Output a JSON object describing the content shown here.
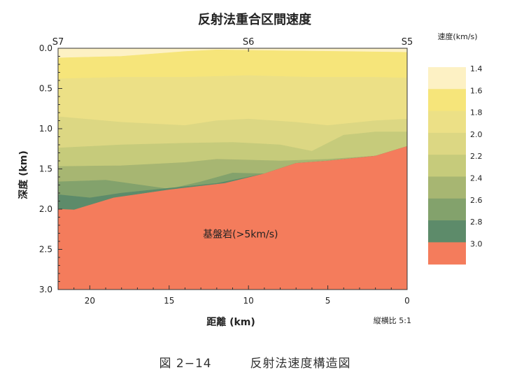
{
  "chart_data": {
    "type": "area",
    "title": "反射法重合区間速度",
    "xlabel": "距離 (km)",
    "ylabel": "深度 (km)",
    "xlim": [
      22,
      0
    ],
    "ylim": [
      0,
      3.0
    ],
    "x_ticks": [
      "20",
      "15",
      "10",
      "5",
      "0"
    ],
    "y_ticks": [
      "0.0",
      "0.5",
      "1.0",
      "1.5",
      "2.0",
      "2.5",
      "3.0"
    ],
    "stations": [
      {
        "name": "S7",
        "x": 22
      },
      {
        "name": "S6",
        "x": 10
      },
      {
        "name": "S5",
        "x": 0
      }
    ],
    "aspect_note": "縦横比 5:1",
    "colorbar": {
      "title": "速度(km/s)",
      "levels": [
        "1.4",
        "1.6",
        "1.8",
        "2.0",
        "2.2",
        "2.4",
        "2.6",
        "2.8",
        "3.0"
      ],
      "colors": [
        "#fdf1c4",
        "#f6e57a",
        "#ece086",
        "#dcd783",
        "#c6cb7b",
        "#a7b672",
        "#83a26c",
        "#5d8b6a",
        "#f47c5c"
      ]
    },
    "layers": [
      {
        "velocity": "1.4",
        "color": "#fdf1c4",
        "top": [
          [
            22,
            0
          ],
          [
            0,
            0
          ]
        ],
        "bottom": [
          [
            22,
            0.12
          ],
          [
            18,
            0.1
          ],
          [
            14,
            0.04
          ],
          [
            12,
            0.02
          ],
          [
            8,
            0.03
          ],
          [
            4,
            0.04
          ],
          [
            0,
            0.05
          ]
        ]
      },
      {
        "velocity": "1.6",
        "color": "#f6e57a",
        "top": [
          [
            22,
            0.12
          ],
          [
            18,
            0.1
          ],
          [
            14,
            0.04
          ],
          [
            12,
            0.02
          ],
          [
            8,
            0.03
          ],
          [
            4,
            0.04
          ],
          [
            0,
            0.05
          ]
        ],
        "bottom": [
          [
            22,
            0.38
          ],
          [
            18,
            0.36
          ],
          [
            14,
            0.36
          ],
          [
            10,
            0.34
          ],
          [
            6,
            0.36
          ],
          [
            2,
            0.36
          ],
          [
            0,
            0.37
          ]
        ]
      },
      {
        "velocity": "1.8",
        "color": "#ece086",
        "top": [
          [
            22,
            0.38
          ],
          [
            18,
            0.36
          ],
          [
            14,
            0.36
          ],
          [
            10,
            0.34
          ],
          [
            6,
            0.36
          ],
          [
            2,
            0.36
          ],
          [
            0,
            0.37
          ]
        ],
        "bottom": [
          [
            22,
            0.85
          ],
          [
            18,
            0.92
          ],
          [
            14,
            0.96
          ],
          [
            12,
            0.9
          ],
          [
            10,
            0.88
          ],
          [
            7,
            0.92
          ],
          [
            5,
            0.96
          ],
          [
            2,
            0.9
          ],
          [
            0,
            0.88
          ]
        ]
      },
      {
        "velocity": "2.0",
        "color": "#dcd783",
        "top": [
          [
            22,
            0.85
          ],
          [
            18,
            0.92
          ],
          [
            14,
            0.96
          ],
          [
            12,
            0.9
          ],
          [
            10,
            0.88
          ],
          [
            7,
            0.92
          ],
          [
            5,
            0.96
          ],
          [
            2,
            0.9
          ],
          [
            0,
            0.88
          ]
        ],
        "bottom": [
          [
            22,
            1.24
          ],
          [
            18,
            1.2
          ],
          [
            14,
            1.18
          ],
          [
            11,
            1.17
          ],
          [
            8,
            1.2
          ],
          [
            6,
            1.28
          ],
          [
            4,
            1.08
          ],
          [
            2,
            1.04
          ],
          [
            0,
            1.04
          ]
        ]
      },
      {
        "velocity": "2.2",
        "color": "#c6cb7b",
        "top": [
          [
            22,
            1.24
          ],
          [
            18,
            1.2
          ],
          [
            14,
            1.18
          ],
          [
            11,
            1.17
          ],
          [
            8,
            1.2
          ],
          [
            6,
            1.28
          ],
          [
            4,
            1.08
          ],
          [
            2,
            1.04
          ],
          [
            0,
            1.04
          ]
        ],
        "bottom": [
          [
            22,
            1.47
          ],
          [
            18,
            1.46
          ],
          [
            14,
            1.42
          ],
          [
            12,
            1.38
          ],
          [
            10,
            1.39
          ],
          [
            8,
            1.4
          ],
          [
            5,
            1.38
          ],
          [
            2,
            1.34
          ],
          [
            0,
            1.22
          ]
        ]
      },
      {
        "velocity": "2.4",
        "color": "#a7b672",
        "top": [
          [
            22,
            1.47
          ],
          [
            18,
            1.46
          ],
          [
            14,
            1.42
          ],
          [
            12,
            1.38
          ],
          [
            10,
            1.39
          ],
          [
            8,
            1.4
          ],
          [
            5,
            1.38
          ],
          [
            2,
            1.34
          ],
          [
            0,
            1.22
          ]
        ],
        "bottom": [
          [
            22,
            1.66
          ],
          [
            19,
            1.64
          ],
          [
            15,
            1.75
          ],
          [
            13,
            1.66
          ],
          [
            11,
            1.55
          ],
          [
            9,
            1.56
          ],
          [
            7,
            1.43
          ],
          [
            5,
            1.4
          ],
          [
            2,
            1.34
          ],
          [
            0,
            1.22
          ]
        ]
      },
      {
        "velocity": "2.6",
        "color": "#83a26c",
        "top": [
          [
            22,
            1.66
          ],
          [
            19,
            1.64
          ],
          [
            15,
            1.75
          ],
          [
            13,
            1.66
          ],
          [
            11,
            1.55
          ],
          [
            9,
            1.56
          ],
          [
            7,
            1.43
          ],
          [
            5,
            1.4
          ],
          [
            2,
            1.34
          ],
          [
            0,
            1.22
          ]
        ],
        "bottom": [
          [
            22,
            1.82
          ],
          [
            20,
            1.86
          ],
          [
            18,
            1.8
          ],
          [
            15,
            1.74
          ],
          [
            12,
            1.68
          ],
          [
            9,
            1.56
          ],
          [
            7,
            1.43
          ],
          [
            5,
            1.4
          ],
          [
            2,
            1.34
          ],
          [
            0,
            1.22
          ]
        ]
      },
      {
        "velocity": "2.8",
        "color": "#5d8b6a",
        "top": [
          [
            22,
            1.82
          ],
          [
            20,
            1.86
          ],
          [
            18,
            1.8
          ],
          [
            15,
            1.74
          ],
          [
            12,
            1.68
          ],
          [
            9,
            1.56
          ],
          [
            7,
            1.43
          ],
          [
            5,
            1.4
          ],
          [
            2,
            1.34
          ],
          [
            0,
            1.22
          ]
        ],
        "bottom": [
          [
            22,
            2.0
          ],
          [
            21,
            2.01
          ],
          [
            18.5,
            1.86
          ],
          [
            15,
            1.76
          ],
          [
            11.5,
            1.68
          ],
          [
            9,
            1.56
          ],
          [
            7,
            1.43
          ],
          [
            5,
            1.4
          ],
          [
            2,
            1.34
          ],
          [
            0,
            1.22
          ]
        ]
      },
      {
        "velocity": "3.0",
        "color": "#f47c5c",
        "top": [
          [
            22,
            2.0
          ],
          [
            21,
            2.01
          ],
          [
            18.5,
            1.86
          ],
          [
            15,
            1.76
          ],
          [
            11.5,
            1.68
          ],
          [
            9,
            1.56
          ],
          [
            7,
            1.43
          ],
          [
            5,
            1.4
          ],
          [
            2,
            1.34
          ],
          [
            0,
            1.22
          ]
        ],
        "bottom": [
          [
            22,
            3.0
          ],
          [
            0,
            3.0
          ]
        ]
      }
    ],
    "annotations": [
      {
        "text": "基盤岩(>5km/s)",
        "x": 10.5,
        "y": 2.35
      }
    ]
  },
  "caption": {
    "figure_number": "図 2−14",
    "text": "反射法速度構造図"
  }
}
